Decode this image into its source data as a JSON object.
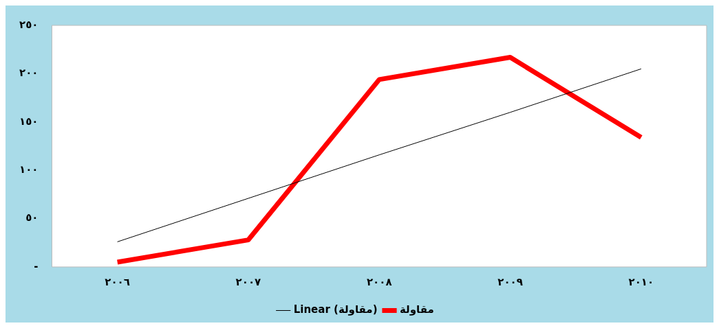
{
  "chart_data": {
    "type": "line",
    "categories": [
      "٢٠٠٦",
      "٢٠٠٧",
      "٢٠٠٨",
      "٢٠٠٩",
      "٢٠١٠"
    ],
    "series": [
      {
        "name": "مقاولة",
        "color": "#ff0000",
        "values": [
          5,
          28,
          194,
          217,
          134
        ]
      },
      {
        "name": "Linear (مقاولة)",
        "type": "line",
        "color": "#000000",
        "values": [
          26,
          71,
          116,
          160,
          205
        ]
      }
    ],
    "ylim": [
      0,
      250
    ],
    "yticks": [
      {
        "value": 0,
        "label": "-"
      },
      {
        "value": 50,
        "label": "٥٠"
      },
      {
        "value": 100,
        "label": "١٠٠"
      },
      {
        "value": 150,
        "label": "١٥٠"
      },
      {
        "value": 200,
        "label": "٢٠٠"
      },
      {
        "value": 250,
        "label": "٢٥٠"
      }
    ],
    "grid": false,
    "legend": "bottom",
    "marker": "none"
  }
}
